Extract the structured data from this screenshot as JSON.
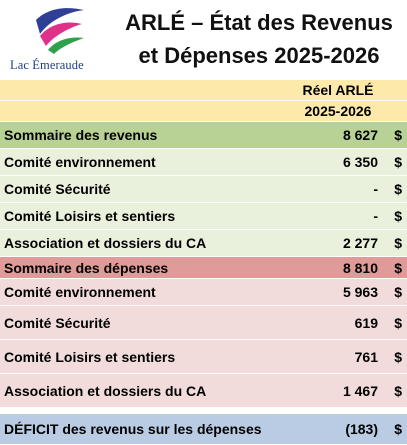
{
  "logo": {
    "text": "Lac Émeraude",
    "icon": "lac-emeraude-logo-waves"
  },
  "title": {
    "line1": "ARLÉ – État des Revenus",
    "line2": "et Dépenses 2025-2026"
  },
  "table": {
    "header": {
      "line1": "Réel ARLÉ",
      "line2": "2025-2026"
    },
    "revenue_summary": {
      "label": "Sommaire des revenus",
      "value": "8 627",
      "currency": "$"
    },
    "revenue_rows": [
      {
        "label": "Comité environnement",
        "value": "6 350",
        "currency": "$"
      },
      {
        "label": "Comité Sécurité",
        "value": "-",
        "currency": "$"
      },
      {
        "label": "Comité Loisirs et sentiers",
        "value": "-",
        "currency": "$"
      },
      {
        "label": "Association et dossiers du CA",
        "value": "2 277",
        "currency": "$"
      }
    ],
    "expense_summary": {
      "label": "Sommaire des dépenses",
      "value": "8 810",
      "currency": "$"
    },
    "expense_rows": [
      {
        "label": "Comité environnement",
        "value": "5 963",
        "currency": "$"
      },
      {
        "label": "Comité Sécurité",
        "value": "619",
        "currency": "$"
      },
      {
        "label": "Comité Loisirs et sentiers",
        "value": "761",
        "currency": "$"
      },
      {
        "label": "Association et dossiers du CA",
        "value": "1 467",
        "currency": "$"
      }
    ],
    "deficit": {
      "label": "DÉFICIT des revenus sur les dépenses",
      "value": "(183)",
      "currency": "$"
    }
  },
  "colors": {
    "header": "#fde9a9",
    "revenue_summary": "#b8d296",
    "revenue_row": "#e9f1dd",
    "expense_summary": "#df9b98",
    "expense_row": "#f2dcdb",
    "deficit": "#b9cce4"
  }
}
